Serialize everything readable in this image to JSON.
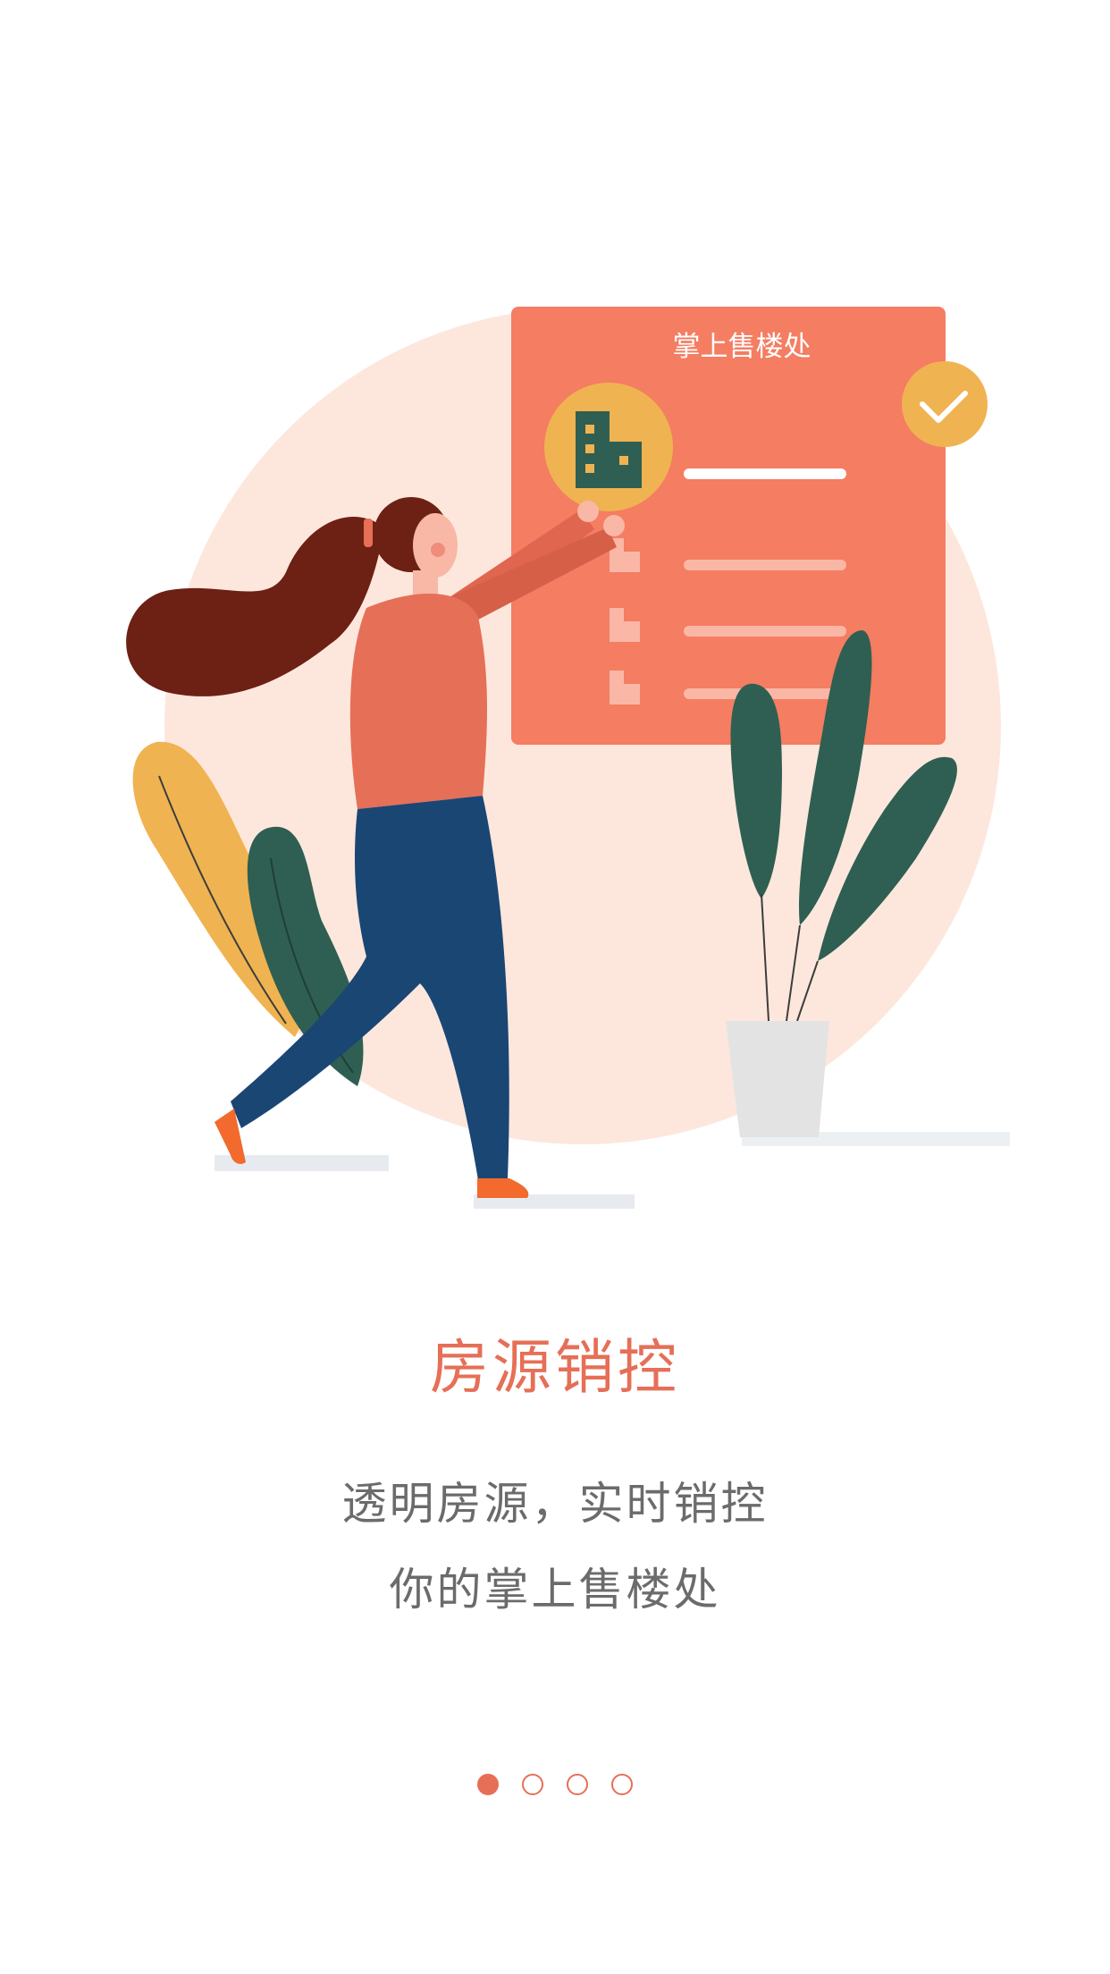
{
  "illustration": {
    "card_title": "掌上售楼处",
    "icons": [
      "building-icon",
      "check-icon"
    ]
  },
  "headline": "房源销控",
  "description": {
    "line1": "透明房源，实时销控",
    "line2": "你的掌上售楼处"
  },
  "pager": {
    "total": 4,
    "active_index": 0
  },
  "colors": {
    "accent": "#e66f57",
    "text_gray": "#6b6b6b",
    "card": "#f47d62",
    "circle_bg": "#fde7dc",
    "badge": "#f0b351",
    "plant_green": "#2f5f52",
    "pants_blue": "#1a4674"
  }
}
